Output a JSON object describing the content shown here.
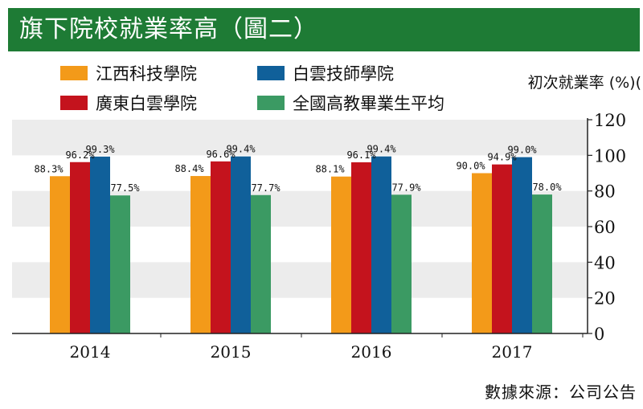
{
  "title": "旗下院校就業率高（圖二）",
  "legend": [
    {
      "label": "江西科技學院",
      "color": "#f39a19"
    },
    {
      "label": "白雲技師學院",
      "color": "#10609a"
    },
    {
      "label": "廣東白雲學院",
      "color": "#c4131d"
    },
    {
      "label": "全國高教畢業生平均",
      "color": "#3b9a63"
    }
  ],
  "ylabel": "初次就業率 (%)(",
  "source": "數據來源：公司公告",
  "chart_data": {
    "type": "bar",
    "title": "旗下院校就業率高（圖二）",
    "ylabel": "初次就業率 (%)",
    "xlabel": "",
    "categories": [
      "2014",
      "2015",
      "2016",
      "2017"
    ],
    "ylim": [
      0,
      120
    ],
    "yticks": [
      0,
      20,
      40,
      60,
      80,
      100,
      120
    ],
    "series": [
      {
        "name": "江西科技學院",
        "color": "#f39a19",
        "values": [
          88.3,
          88.4,
          88.1,
          90.0
        ],
        "labels": [
          "88.3%",
          "88.4%",
          "88.1%",
          "90.0%"
        ]
      },
      {
        "name": "廣東白雲學院",
        "color": "#c4131d",
        "values": [
          96.2,
          96.6,
          96.1,
          94.9
        ],
        "labels": [
          "96.2%",
          "96.6%",
          "96.1%",
          "94.9%"
        ]
      },
      {
        "name": "白雲技師學院",
        "color": "#10609a",
        "values": [
          99.3,
          99.4,
          99.4,
          99.0
        ],
        "labels": [
          "99.3%",
          "99.4%",
          "99.4%",
          "99.0%"
        ]
      },
      {
        "name": "全國高教畢業生平均",
        "color": "#3b9a63",
        "values": [
          77.5,
          77.7,
          77.9,
          78.0
        ],
        "labels": [
          "77.5%",
          "77.7%",
          "77.9%",
          "78.0%"
        ]
      }
    ]
  }
}
